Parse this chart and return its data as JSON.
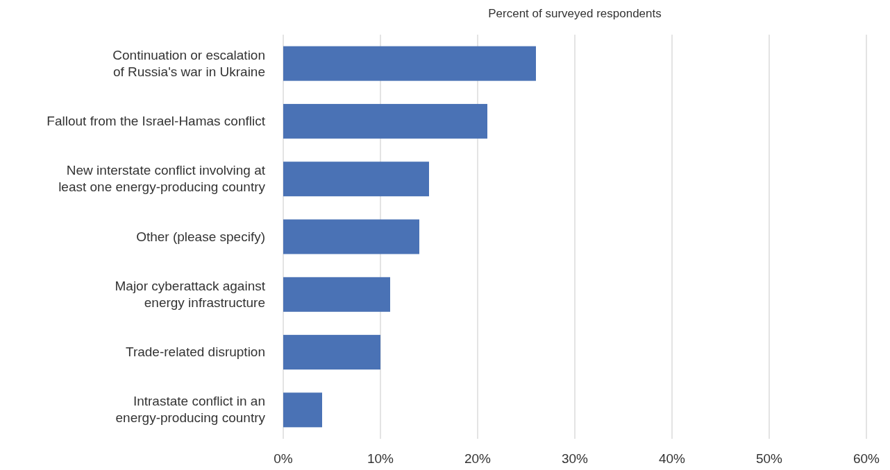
{
  "chart_data": {
    "type": "bar",
    "orientation": "horizontal",
    "xlabel": "Percent of surveyed respondents",
    "categories": [
      "Continuation or escalation of Russia's war in Ukraine",
      "Fallout from the Israel-Hamas conflict",
      "New interstate conflict involving at least one energy-producing country",
      "Other (please specify)",
      "Major cyberattack against energy infrastructure",
      "Trade-related disruption",
      "Intrastate conflict in an energy-producing country"
    ],
    "values": [
      26,
      21,
      15,
      14,
      11,
      10,
      4
    ],
    "color": "#4a72b5",
    "xlim": [
      0,
      60
    ],
    "xticks": [
      {
        "value": 0,
        "label": "0%"
      },
      {
        "value": 10,
        "label": "10%"
      },
      {
        "value": 20,
        "label": "20%"
      },
      {
        "value": 30,
        "label": "30%"
      },
      {
        "value": 40,
        "label": "40%"
      },
      {
        "value": 50,
        "label": "50%"
      },
      {
        "value": 60,
        "label": "60%"
      }
    ],
    "grid": "x"
  }
}
